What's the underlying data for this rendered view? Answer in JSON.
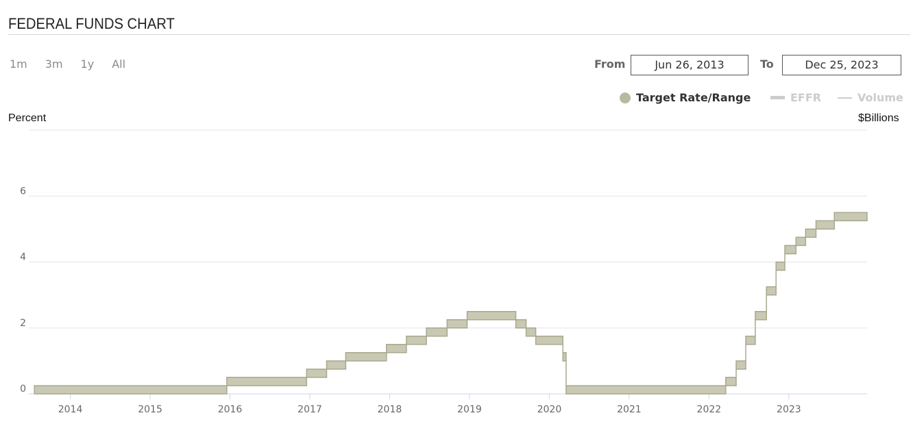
{
  "header": {
    "title": "FEDERAL FUNDS CHART"
  },
  "zoom": {
    "buttons": [
      "1m",
      "3m",
      "1y",
      "All"
    ]
  },
  "range": {
    "from_label": "From",
    "from_value": "Jun 26, 2013",
    "to_label": "To",
    "to_value": "Dec 25, 2023"
  },
  "legend": {
    "items": [
      {
        "label": "Target Rate/Range",
        "active": true,
        "color": "#b9b9a0"
      },
      {
        "label": "EFFR",
        "active": false,
        "color": "#cccccc"
      },
      {
        "label": "Volume",
        "active": false,
        "color": "#cccccc"
      }
    ]
  },
  "chart_data": {
    "type": "area",
    "ylabel_left": "Percent",
    "ylabel_right": "$Billions",
    "xlim": [
      2013.48,
      2023.98
    ],
    "ylim": [
      0,
      8
    ],
    "y_ticks": [
      0,
      2,
      4,
      6
    ],
    "x_ticks": [
      2014,
      2015,
      2016,
      2017,
      2018,
      2019,
      2020,
      2021,
      2022,
      2023
    ],
    "grid": true,
    "band_color": "#c9c9b3",
    "band_edge_color": "#a8a88f",
    "series": [
      {
        "name": "Target Rate/Range",
        "steps": [
          {
            "x": 2013.73,
            "low": 0.0,
            "high": 0.25
          },
          {
            "x": 2015.96,
            "low": 0.25,
            "high": 0.5
          },
          {
            "x": 2016.96,
            "low": 0.5,
            "high": 0.75
          },
          {
            "x": 2017.21,
            "low": 0.75,
            "high": 1.0
          },
          {
            "x": 2017.45,
            "low": 1.0,
            "high": 1.25
          },
          {
            "x": 2017.96,
            "low": 1.25,
            "high": 1.5
          },
          {
            "x": 2018.21,
            "low": 1.5,
            "high": 1.75
          },
          {
            "x": 2018.46,
            "low": 1.75,
            "high": 2.0
          },
          {
            "x": 2018.72,
            "low": 2.0,
            "high": 2.25
          },
          {
            "x": 2018.97,
            "low": 2.25,
            "high": 2.5
          },
          {
            "x": 2019.58,
            "low": 2.0,
            "high": 2.25
          },
          {
            "x": 2019.71,
            "low": 1.75,
            "high": 2.0
          },
          {
            "x": 2019.83,
            "low": 1.5,
            "high": 1.75
          },
          {
            "x": 2020.17,
            "low": 1.0,
            "high": 1.25
          },
          {
            "x": 2020.21,
            "low": 0.0,
            "high": 0.25
          },
          {
            "x": 2022.21,
            "low": 0.25,
            "high": 0.5
          },
          {
            "x": 2022.34,
            "low": 0.75,
            "high": 1.0
          },
          {
            "x": 2022.46,
            "low": 1.5,
            "high": 1.75
          },
          {
            "x": 2022.58,
            "low": 2.25,
            "high": 2.5
          },
          {
            "x": 2022.72,
            "low": 3.0,
            "high": 3.25
          },
          {
            "x": 2022.84,
            "low": 3.75,
            "high": 4.0
          },
          {
            "x": 2022.95,
            "low": 4.25,
            "high": 4.5
          },
          {
            "x": 2023.09,
            "low": 4.5,
            "high": 4.75
          },
          {
            "x": 2023.21,
            "low": 4.75,
            "high": 5.0
          },
          {
            "x": 2023.34,
            "low": 5.0,
            "high": 5.25
          },
          {
            "x": 2023.57,
            "low": 5.25,
            "high": 5.5
          }
        ],
        "start": {
          "x": 2013.73,
          "low": 0.0,
          "high": 0.25
        },
        "end_x": 2023.98
      }
    ]
  }
}
